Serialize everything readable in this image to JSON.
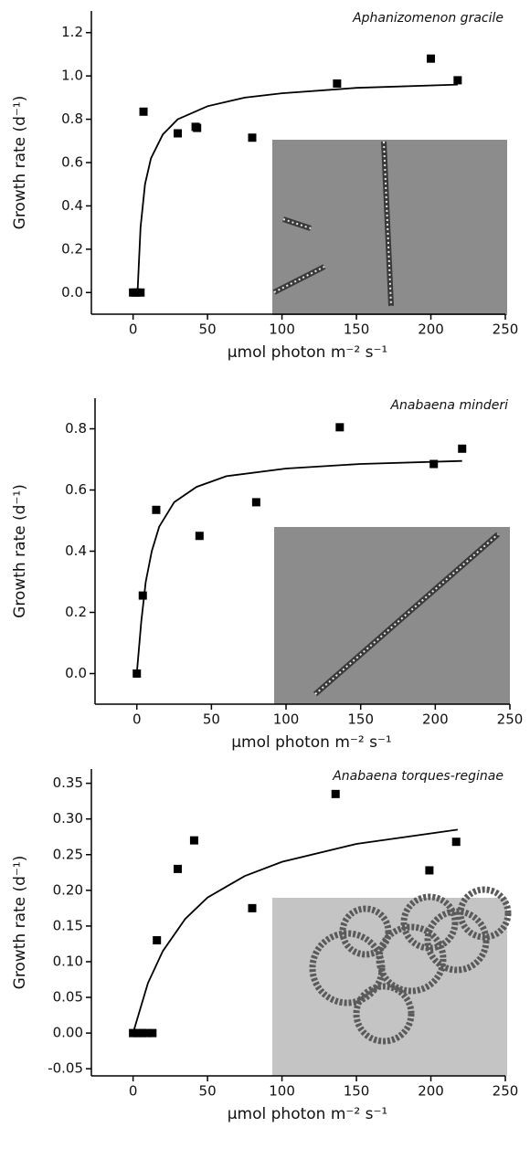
{
  "chart_data": [
    {
      "type": "scatter",
      "title": "Aphanizomenon gracile",
      "xlabel": "μmol photon m⁻² s⁻¹",
      "ylabel": "Growth rate (d⁻¹)",
      "xlim": [
        -28,
        250
      ],
      "xticks": [
        0,
        50,
        100,
        150,
        200,
        250
      ],
      "ylim": [
        -0.1,
        1.3
      ],
      "yticks": [
        {
          "value": 0,
          "label": "0.0"
        },
        0.2,
        0.4,
        0.6,
        0.8,
        {
          "value": 1,
          "label": "1.0"
        },
        1.2
      ],
      "series": [
        {
          "type": "scatter",
          "color": "#000000",
          "x": [
            0,
            2,
            5,
            7,
            30,
            42,
            43,
            80,
            137,
            200,
            218
          ],
          "values": [
            0,
            0,
            0,
            0.835,
            0.735,
            0.765,
            0.76,
            0.715,
            0.965,
            1.08,
            0.98
          ]
        },
        {
          "type": "line",
          "color": "#000000",
          "x": [
            3,
            5,
            8,
            12,
            20,
            30,
            50,
            75,
            100,
            150,
            218
          ],
          "values": [
            0,
            0.3,
            0.5,
            0.62,
            0.73,
            0.8,
            0.86,
            0.9,
            0.92,
            0.945,
            0.96
          ]
        }
      ]
    },
    {
      "type": "scatter",
      "title": "Anabaena minderi",
      "xlabel": "μmol photon m⁻² s⁻¹",
      "ylabel": "Growth rate (d⁻¹)",
      "xlim": [
        -28,
        250
      ],
      "xticks": [
        0,
        50,
        100,
        150,
        200,
        250
      ],
      "ylim": [
        -0.1,
        0.9
      ],
      "yticks": [
        {
          "value": 0,
          "label": "0.0"
        },
        0.2,
        0.4,
        0.6,
        0.8
      ],
      "series": [
        {
          "type": "scatter",
          "color": "#000000",
          "x": [
            0,
            4,
            13,
            42,
            80,
            136,
            199,
            218
          ],
          "values": [
            0,
            0.255,
            0.535,
            0.45,
            0.56,
            0.805,
            0.685,
            0.735
          ]
        },
        {
          "type": "line",
          "color": "#000000",
          "x": [
            0,
            3,
            6,
            10,
            15,
            25,
            40,
            60,
            100,
            150,
            218
          ],
          "values": [
            0,
            0.17,
            0.3,
            0.4,
            0.48,
            0.56,
            0.61,
            0.645,
            0.67,
            0.685,
            0.695
          ]
        }
      ]
    },
    {
      "type": "scatter",
      "title": "Anabaena torques-reginae",
      "xlabel": "μmol photon m⁻² s⁻¹",
      "ylabel": "Growth rate (d⁻¹)",
      "xlim": [
        -28,
        250
      ],
      "xticks": [
        0,
        50,
        100,
        150,
        200,
        250
      ],
      "ylim": [
        -0.06,
        0.37
      ],
      "yticks": [
        -0.05,
        {
          "value": 0,
          "label": "0.00"
        },
        0.05,
        {
          "value": 0.1,
          "label": "0.10"
        },
        0.15,
        {
          "value": 0.2,
          "label": "0.20"
        },
        0.25,
        {
          "value": 0.3,
          "label": "0.30"
        },
        0.35
      ],
      "series": [
        {
          "type": "scatter",
          "color": "#000000",
          "x": [
            0,
            3,
            6,
            9,
            13,
            16,
            30,
            41,
            80,
            136,
            199,
            217
          ],
          "values": [
            0,
            0,
            0,
            0,
            0,
            0.13,
            0.23,
            0.27,
            0.175,
            0.335,
            0.228,
            0.268
          ]
        },
        {
          "type": "line",
          "color": "#000000",
          "x": [
            0,
            10,
            20,
            35,
            50,
            75,
            100,
            150,
            218
          ],
          "values": [
            0,
            0.07,
            0.115,
            0.16,
            0.19,
            0.22,
            0.24,
            0.265,
            0.285
          ]
        }
      ]
    }
  ]
}
